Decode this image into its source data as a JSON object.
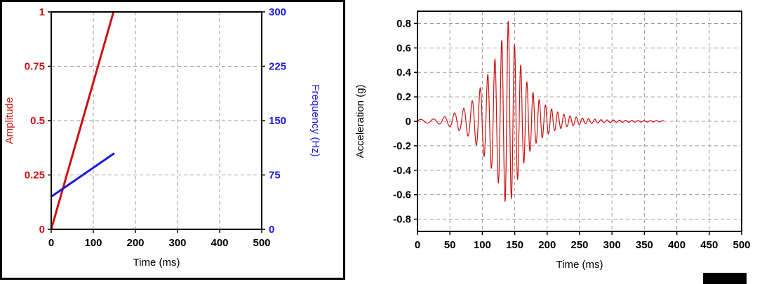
{
  "page": {
    "background": "#ffffff"
  },
  "chart_data": [
    {
      "id": "sweep-profile",
      "type": "line",
      "title": "",
      "xlabel": "Time (ms)",
      "xlim": [
        0,
        500
      ],
      "x_ticks": [
        0,
        100,
        200,
        300,
        400,
        500
      ],
      "x_tick_labels": [
        "0",
        "100",
        "200",
        "300",
        "400",
        "500"
      ],
      "grid": true,
      "grid_color": "#9a9a9a",
      "frame_color": "#000000",
      "left_axis": {
        "label": "Amplitude",
        "color": "#cc1111",
        "ylim": [
          0,
          1
        ],
        "ticks": [
          0,
          0.25,
          0.5,
          0.75,
          1
        ],
        "tick_labels": [
          "0",
          "0.25",
          "0.5",
          "0.75",
          "1"
        ]
      },
      "right_axis": {
        "label": "Frequency (Hz)",
        "color": "#1a1ae0",
        "ylim": [
          0,
          300
        ],
        "ticks": [
          0,
          75,
          150,
          225,
          300
        ],
        "tick_labels": [
          "0",
          "75",
          "150",
          "225",
          "300"
        ]
      },
      "series": [
        {
          "name": "Amplitude",
          "axis": "left",
          "color": "#cc1111",
          "points": [
            [
              0,
              0
            ],
            [
              148,
              1
            ]
          ]
        },
        {
          "name": "Frequency",
          "axis": "right",
          "color": "#1a1ae0",
          "points": [
            [
              0,
              45
            ],
            [
              150,
              105
            ]
          ]
        }
      ]
    },
    {
      "id": "acceleration-waveform",
      "type": "line",
      "title": "",
      "xlabel": "Time (ms)",
      "ylabel": "Acceleration (g)",
      "color": "#cc1111",
      "xlim": [
        0,
        500
      ],
      "ylim": [
        -0.9,
        0.9
      ],
      "x_ticks": [
        0,
        50,
        100,
        150,
        200,
        250,
        300,
        350,
        400,
        450,
        500
      ],
      "x_tick_labels": [
        "0",
        "50",
        "100",
        "150",
        "200",
        "250",
        "300",
        "350",
        "400",
        "450",
        "500"
      ],
      "y_ticks": [
        -0.8,
        -0.6,
        -0.4,
        -0.2,
        0,
        0.2,
        0.4,
        0.6,
        0.8
      ],
      "y_tick_labels": [
        "-0.8",
        "-0.6",
        "-0.4",
        "-0.2",
        "0",
        "0.2",
        "0.4",
        "0.6",
        "0.8"
      ],
      "grid": true,
      "grid_color": "#9a9a9a",
      "frame_color": "#000000",
      "signal": {
        "t_end_ms": 380,
        "sample_step_ms": 0.4,
        "freq_start_hz": 45,
        "freq_end_hz": 105,
        "sweep_end_ms": 150,
        "peak_g": 0.82,
        "trough_g": -0.72,
        "envelope_points": [
          [
            0,
            0.015
          ],
          [
            30,
            0.02
          ],
          [
            50,
            0.05
          ],
          [
            70,
            0.1
          ],
          [
            85,
            0.17
          ],
          [
            100,
            0.3
          ],
          [
            115,
            0.45
          ],
          [
            125,
            0.58
          ],
          [
            135,
            0.75
          ],
          [
            140,
            0.82
          ],
          [
            148,
            0.66
          ],
          [
            158,
            0.48
          ],
          [
            168,
            0.33
          ],
          [
            180,
            0.22
          ],
          [
            195,
            0.14
          ],
          [
            210,
            0.09
          ],
          [
            230,
            0.05
          ],
          [
            255,
            0.025
          ],
          [
            285,
            0.012
          ],
          [
            330,
            0.008
          ],
          [
            380,
            0.006
          ]
        ]
      }
    }
  ]
}
